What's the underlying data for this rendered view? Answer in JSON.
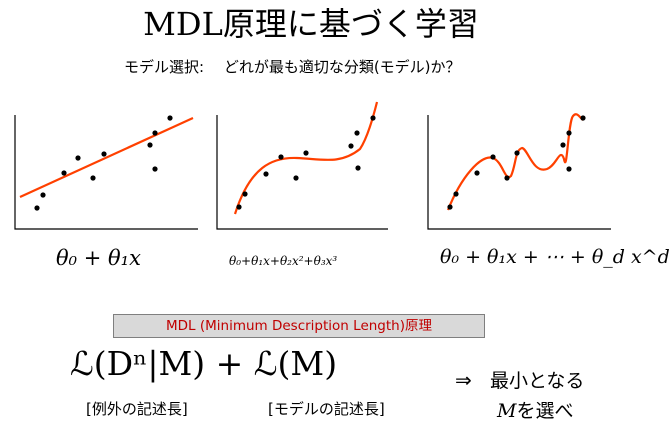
{
  "title": "MDL原理に基づく学習",
  "subtitle": "モデル選択:　 どれが最も適切な分類(モデル)か？",
  "models": [
    {
      "formula": "θ₀ + θ₁x"
    },
    {
      "formula": "θ₀+θ₁x+θ₂x²+θ₃x³"
    },
    {
      "formula": "θ₀ + θ₁x + ⋯ + θ_d x^d"
    }
  ],
  "banner": "MDL (Minimum Description Length)原理",
  "criterion": {
    "formula": "ℒ(Dⁿ|M) + ℒ(M)",
    "data_cost_label": "[例外の記述長]",
    "model_cost_label": "[モデルの記述長]"
  },
  "conclusion": {
    "arrow": "⇒",
    "line1": "最小となる",
    "symbol": "M",
    "line2_rest": "を選べ"
  },
  "colors": {
    "curve": "#ff4000",
    "point": "#000000",
    "banner_text": "#c00000",
    "banner_bg": "#d9d9d9"
  }
}
